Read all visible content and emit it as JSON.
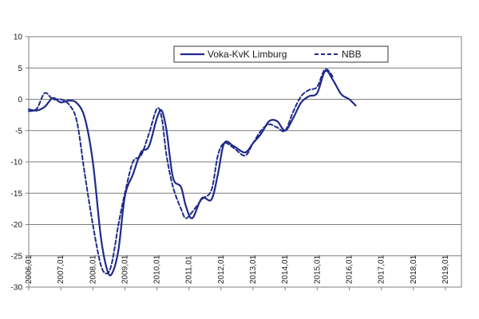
{
  "chart_data": {
    "type": "line",
    "title": "",
    "xlabel": "",
    "ylabel": "",
    "ylim": [
      -30,
      10
    ],
    "yticks": [
      10,
      5,
      0,
      -5,
      -10,
      -15,
      -20,
      -25,
      -30
    ],
    "xlim": [
      2006.0,
      2019.5
    ],
    "xticks": [
      {
        "value": 2006.0,
        "label": "2006,01"
      },
      {
        "value": 2007.0,
        "label": "2007,01"
      },
      {
        "value": 2008.0,
        "label": "2008,01"
      },
      {
        "value": 2009.0,
        "label": "2009,01"
      },
      {
        "value": 2010.0,
        "label": "2010,01"
      },
      {
        "value": 2011.0,
        "label": "2011,01"
      },
      {
        "value": 2012.0,
        "label": "2012,01"
      },
      {
        "value": 2013.0,
        "label": "2013,01"
      },
      {
        "value": 2014.0,
        "label": "2014,01"
      },
      {
        "value": 2015.0,
        "label": "2015,01"
      },
      {
        "value": 2016.0,
        "label": "2016,01"
      },
      {
        "value": 2017.0,
        "label": "2017,01"
      },
      {
        "value": 2018.0,
        "label": "2018,01"
      },
      {
        "value": 2019.0,
        "label": "2019,01"
      }
    ],
    "grid": "horizontal",
    "legend_placement": "top-right",
    "line_color": "#1f2a8a",
    "series": [
      {
        "name": "Voka-KvK Limburg",
        "style": "solid",
        "points": [
          [
            2006.0,
            -1.6
          ],
          [
            2006.25,
            -1.8
          ],
          [
            2006.5,
            -1.2
          ],
          [
            2006.75,
            0.2
          ],
          [
            2007.0,
            -0.5
          ],
          [
            2007.25,
            -0.2
          ],
          [
            2007.5,
            -0.6
          ],
          [
            2007.75,
            -3.0
          ],
          [
            2008.0,
            -10.0
          ],
          [
            2008.25,
            -22.0
          ],
          [
            2008.45,
            -27.3
          ],
          [
            2008.6,
            -27.8
          ],
          [
            2008.8,
            -24.0
          ],
          [
            2009.0,
            -15.5
          ],
          [
            2009.25,
            -12.0
          ],
          [
            2009.5,
            -8.5
          ],
          [
            2009.75,
            -7.5
          ],
          [
            2010.0,
            -3.0
          ],
          [
            2010.15,
            -1.8
          ],
          [
            2010.3,
            -5.0
          ],
          [
            2010.5,
            -12.5
          ],
          [
            2010.75,
            -14.0
          ],
          [
            2010.9,
            -17.0
          ],
          [
            2011.1,
            -19.0
          ],
          [
            2011.4,
            -15.8
          ],
          [
            2011.7,
            -16.0
          ],
          [
            2011.9,
            -12.0
          ],
          [
            2012.1,
            -7.0
          ],
          [
            2012.4,
            -7.5
          ],
          [
            2012.75,
            -8.5
          ],
          [
            2013.0,
            -7.0
          ],
          [
            2013.25,
            -5.5
          ],
          [
            2013.5,
            -3.5
          ],
          [
            2013.75,
            -3.5
          ],
          [
            2014.0,
            -5.0
          ],
          [
            2014.25,
            -3.0
          ],
          [
            2014.5,
            -0.5
          ],
          [
            2014.75,
            0.5
          ],
          [
            2015.0,
            1.0
          ],
          [
            2015.25,
            4.5
          ],
          [
            2015.5,
            3.0
          ],
          [
            2015.75,
            0.8
          ],
          [
            2016.0,
            0.0
          ],
          [
            2016.2,
            -1.0
          ]
        ]
      },
      {
        "name": "NBB",
        "style": "dashed",
        "points": [
          [
            2006.0,
            -1.9
          ],
          [
            2006.25,
            -1.5
          ],
          [
            2006.5,
            1.0
          ],
          [
            2006.75,
            0.0
          ],
          [
            2007.0,
            0.0
          ],
          [
            2007.25,
            -0.8
          ],
          [
            2007.5,
            -3.5
          ],
          [
            2007.75,
            -12.0
          ],
          [
            2008.0,
            -20.0
          ],
          [
            2008.25,
            -26.5
          ],
          [
            2008.45,
            -27.8
          ],
          [
            2008.6,
            -26.0
          ],
          [
            2008.8,
            -20.0
          ],
          [
            2009.0,
            -15.0
          ],
          [
            2009.25,
            -10.0
          ],
          [
            2009.5,
            -9.0
          ],
          [
            2009.75,
            -5.5
          ],
          [
            2010.0,
            -1.5
          ],
          [
            2010.15,
            -3.0
          ],
          [
            2010.3,
            -9.0
          ],
          [
            2010.5,
            -14.0
          ],
          [
            2010.75,
            -17.5
          ],
          [
            2010.9,
            -19.0
          ],
          [
            2011.1,
            -18.0
          ],
          [
            2011.4,
            -16.0
          ],
          [
            2011.7,
            -14.5
          ],
          [
            2011.9,
            -9.0
          ],
          [
            2012.1,
            -7.0
          ],
          [
            2012.4,
            -7.8
          ],
          [
            2012.75,
            -9.0
          ],
          [
            2013.0,
            -7.0
          ],
          [
            2013.25,
            -5.0
          ],
          [
            2013.5,
            -4.0
          ],
          [
            2013.75,
            -4.5
          ],
          [
            2014.0,
            -5.0
          ],
          [
            2014.25,
            -2.0
          ],
          [
            2014.5,
            0.5
          ],
          [
            2014.75,
            1.5
          ],
          [
            2015.0,
            2.0
          ],
          [
            2015.25,
            4.8
          ],
          [
            2015.5,
            3.5
          ]
        ]
      }
    ]
  }
}
